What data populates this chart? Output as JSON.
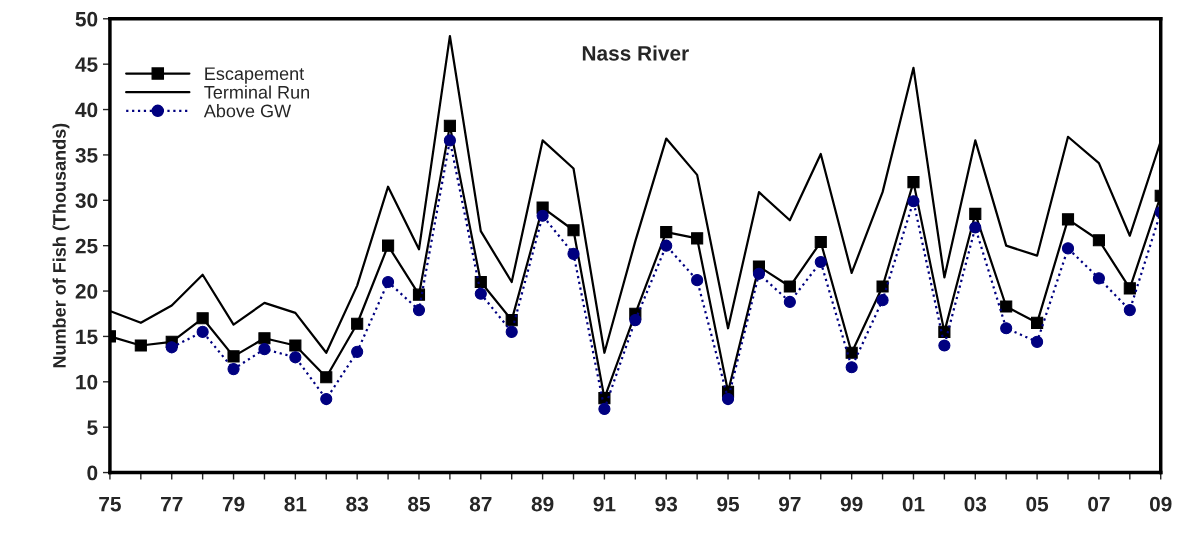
{
  "chart_data": {
    "type": "line",
    "title": "Nass River",
    "ylabel": "Number of Fish (Thousands)",
    "categories": [
      "75",
      null,
      "77",
      null,
      "79",
      null,
      "81",
      null,
      "83",
      null,
      "85",
      null,
      "87",
      null,
      "89",
      null,
      "91",
      null,
      "93",
      null,
      "95",
      null,
      "97",
      null,
      "99",
      null,
      "01",
      null,
      "03",
      null,
      "05",
      null,
      "07",
      null,
      "09"
    ],
    "series": [
      {
        "name": "Escapement",
        "color": "#000000",
        "marker": "square",
        "line_style": "solid",
        "values": [
          15.0,
          14.0,
          14.4,
          17.0,
          12.8,
          14.8,
          14.0,
          10.5,
          16.4,
          25.0,
          19.6,
          38.2,
          21.0,
          16.8,
          29.2,
          26.7,
          8.2,
          17.5,
          26.5,
          25.8,
          8.9,
          22.7,
          20.5,
          25.4,
          13.2,
          20.5,
          32.0,
          15.5,
          28.5,
          18.3,
          16.5,
          27.9,
          25.6,
          20.3,
          30.5
        ]
      },
      {
        "name": "Terminal Run",
        "color": "#000000",
        "marker": "none",
        "line_style": "solid",
        "values": [
          17.8,
          16.5,
          18.4,
          21.8,
          16.3,
          18.7,
          17.6,
          13.2,
          20.6,
          31.5,
          24.6,
          48.1,
          26.6,
          21.0,
          36.6,
          33.5,
          13.2,
          25.5,
          36.8,
          32.8,
          15.9,
          30.9,
          27.8,
          35.1,
          22.0,
          30.9,
          44.6,
          21.5,
          36.6,
          25.0,
          23.9,
          37.0,
          34.1,
          26.1,
          36.5
        ]
      },
      {
        "name": "Above GW",
        "color": "#000080",
        "marker": "circle",
        "line_style": "dotted",
        "values": [
          null,
          null,
          13.8,
          15.5,
          11.4,
          13.6,
          12.7,
          8.1,
          13.3,
          21.0,
          17.9,
          36.6,
          19.7,
          15.5,
          28.3,
          24.1,
          7.0,
          16.8,
          25.0,
          21.2,
          8.1,
          21.9,
          18.8,
          23.2,
          11.6,
          19.0,
          29.9,
          14.0,
          27.0,
          15.9,
          14.4,
          24.7,
          21.4,
          17.9,
          28.7
        ]
      }
    ],
    "ylim": [
      0,
      50
    ],
    "yticks": [
      0,
      5,
      10,
      15,
      20,
      25,
      30,
      35,
      40,
      45,
      50
    ],
    "grid": false,
    "legend": "top left"
  }
}
